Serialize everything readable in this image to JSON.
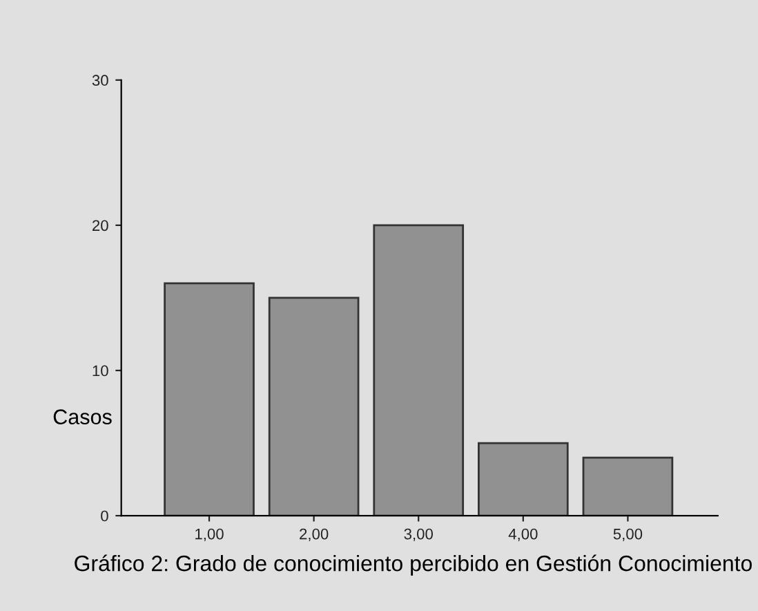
{
  "chart_data": {
    "type": "bar",
    "categories": [
      "1,00",
      "2,00",
      "3,00",
      "4,00",
      "5,00"
    ],
    "values": [
      16,
      15,
      20,
      5,
      4
    ],
    "color": "#919191",
    "ylabel": "Casos",
    "ylim": [
      0,
      30
    ],
    "yticks": [
      0,
      10,
      20,
      30
    ],
    "grid": false,
    "legend": false,
    "annotations": [
      "Gráfico 2: Grado de conocimiento percibido en Gestión Conocimiento"
    ]
  }
}
